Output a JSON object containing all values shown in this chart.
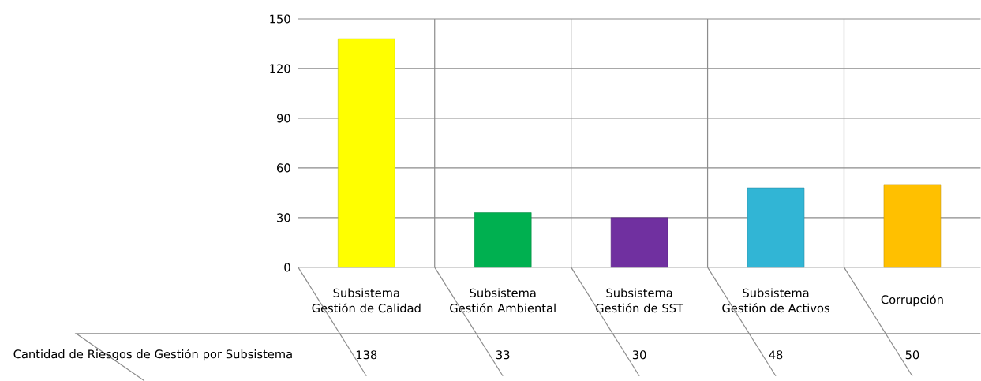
{
  "chart_data": {
    "type": "bar",
    "categories": [
      "Subsistema Gestión de Calidad",
      "Subsistema Gestión Ambiental",
      "Subsistema Gestión de SST",
      "Subsistema Gestión de Activos",
      "Corrupción"
    ],
    "series": [
      {
        "name": "Cantidad de Riesgos de Gestión por Subsistema",
        "colors": [
          "#ffff00",
          "#00b050",
          "#7030a0",
          "#31b5d5",
          "#ffc000"
        ],
        "values": [
          138,
          33,
          30,
          48,
          50
        ]
      }
    ],
    "ylim": [
      0,
      150
    ],
    "yticks": [
      0,
      30,
      60,
      90,
      120,
      150
    ],
    "grid": true,
    "data_labels": true
  }
}
